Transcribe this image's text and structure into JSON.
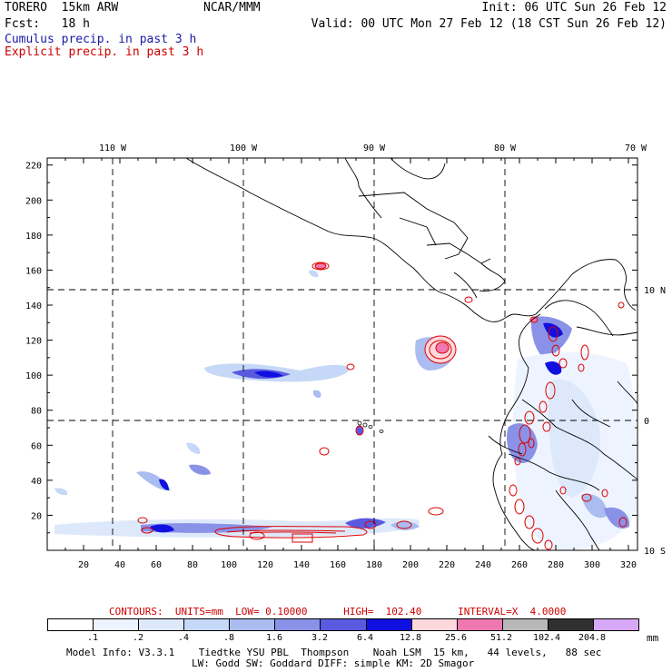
{
  "header": {
    "model": "TORERO  15km ARW",
    "org": "NCAR/MMM",
    "init": "Init: 06 UTC Sun 26 Feb 12",
    "fcst": "Fcst:   18 h",
    "valid": "Valid: 00 UTC Mon 27 Feb 12 (18 CST Sun 26 Feb 12)",
    "field1": "Cumulus precip. in past 3 h",
    "field2": "Explicit precip. in past 3 h"
  },
  "colors": {
    "field1": "#1a1aa8",
    "field2": "#cc0000",
    "contour": "#dd0000"
  },
  "axes": {
    "top_lon": [
      "110 W",
      "100 W",
      "90 W",
      "80 W",
      "70 W"
    ],
    "right_lat": [
      "10 N",
      "0",
      "10 S"
    ],
    "left_y": [
      "20",
      "40",
      "60",
      "80",
      "100",
      "120",
      "140",
      "160",
      "180",
      "200",
      "220"
    ],
    "bottom_x": [
      "20",
      "40",
      "60",
      "80",
      "100",
      "120",
      "140",
      "160",
      "180",
      "200",
      "220",
      "240",
      "260",
      "280",
      "300",
      "320"
    ]
  },
  "contours_line": "CONTOURS:  UNITS=mm  LOW= 0.10000      HIGH=  102.40      INTERVAL=X  4.0000",
  "legend": {
    "labels": [
      ".1",
      ".2",
      ".4",
      ".8",
      "1.6",
      "3.2",
      "6.4",
      "12.8",
      "25.6",
      "51.2",
      "102.4",
      "204.8"
    ],
    "unit": "mm",
    "colors": [
      "#ffffff",
      "#eef4ff",
      "#dde9fb",
      "#c6d8f7",
      "#aabcf0",
      "#8a92e8",
      "#5a5ae0",
      "#1010e0",
      "#fcd8dc",
      "#f078b0",
      "#b8b8b8",
      "#303030",
      "#d8a8f8"
    ]
  },
  "footer": {
    "line1": "Model Info: V3.3.1    Tiedtke YSU PBL  Thompson    Noah LSM  15 km,   44 levels,   88 sec",
    "line2": "LW: Godd SW: Goddard DIFF: simple KM: 2D Smagor"
  }
}
